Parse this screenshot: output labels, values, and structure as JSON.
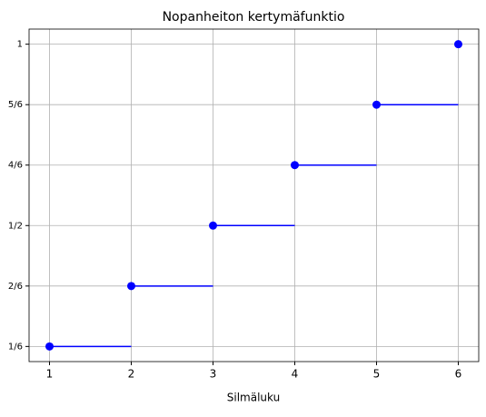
{
  "chart_data": {
    "type": "step-scatter",
    "title": "Nopanheiton kertymäfunktio",
    "x_label": "Silmäluku",
    "x": [
      1,
      2,
      3,
      4,
      5,
      6
    ],
    "values": [
      0.1667,
      0.3333,
      0.5,
      0.6667,
      0.8333,
      1
    ],
    "color": "#0000ff",
    "xlim": [
      0.75,
      6.25
    ],
    "xticks": [
      1,
      2,
      3,
      4,
      5,
      6
    ],
    "ylim": [
      0.125,
      1.0417
    ],
    "yticks": [
      {
        "value": 0.1667,
        "label": "1/6"
      },
      {
        "value": 0.3333,
        "label": "2/6"
      },
      {
        "value": 0.5,
        "label": "1/2"
      },
      {
        "value": 0.6667,
        "label": "4/6"
      },
      {
        "value": 0.8333,
        "label": "5/6"
      },
      1
    ],
    "grid": true
  }
}
